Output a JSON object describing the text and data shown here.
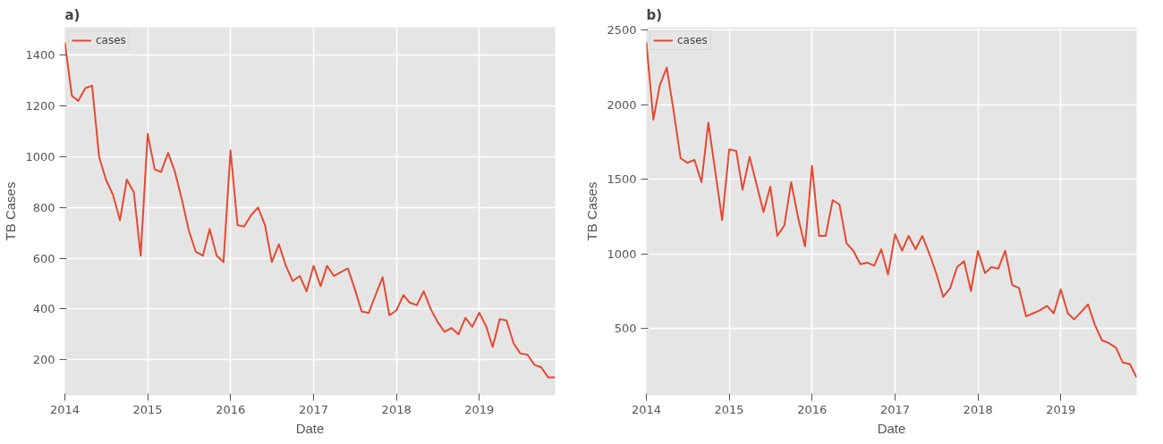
{
  "chart_data": [
    {
      "type": "line",
      "title": "a)",
      "xlabel": "Date",
      "ylabel": "TB Cases",
      "x": [
        "2014-01",
        "2014-02",
        "2014-03",
        "2014-04",
        "2014-05",
        "2014-06",
        "2014-07",
        "2014-08",
        "2014-09",
        "2014-10",
        "2014-11",
        "2014-12",
        "2015-01",
        "2015-02",
        "2015-03",
        "2015-04",
        "2015-05",
        "2015-06",
        "2015-07",
        "2015-08",
        "2015-09",
        "2015-10",
        "2015-11",
        "2015-12",
        "2016-01",
        "2016-02",
        "2016-03",
        "2016-04",
        "2016-05",
        "2016-06",
        "2016-07",
        "2016-08",
        "2016-09",
        "2016-10",
        "2016-11",
        "2016-12",
        "2017-01",
        "2017-02",
        "2017-03",
        "2017-04",
        "2017-05",
        "2017-06",
        "2017-07",
        "2017-08",
        "2017-09",
        "2017-10",
        "2017-11",
        "2017-12",
        "2018-01",
        "2018-02",
        "2018-03",
        "2018-04",
        "2018-05",
        "2018-06",
        "2018-07",
        "2018-08",
        "2018-09",
        "2018-10",
        "2018-11",
        "2018-12",
        "2019-01",
        "2019-02",
        "2019-03",
        "2019-04",
        "2019-05",
        "2019-06",
        "2019-07",
        "2019-08",
        "2019-09",
        "2019-10",
        "2019-11",
        "2019-12"
      ],
      "series": [
        {
          "name": "cases",
          "color": "#e24a33",
          "values": [
            1450,
            1240,
            1220,
            1270,
            1280,
            1000,
            910,
            850,
            750,
            910,
            860,
            610,
            1090,
            950,
            940,
            1015,
            940,
            830,
            710,
            625,
            610,
            715,
            610,
            585,
            1025,
            730,
            725,
            770,
            800,
            730,
            585,
            655,
            570,
            510,
            530,
            470,
            570,
            490,
            570,
            530,
            545,
            560,
            480,
            390,
            385,
            455,
            525,
            375,
            395,
            455,
            425,
            415,
            470,
            400,
            350,
            310,
            325,
            300,
            365,
            330,
            385,
            330,
            250,
            360,
            355,
            265,
            225,
            220,
            180,
            170,
            130,
            130
          ]
        }
      ],
      "xlim": [
        "2014-01",
        "2019-12"
      ],
      "xticks": [
        {
          "value": "2014-01",
          "label": "2014"
        },
        {
          "value": "2015-01",
          "label": "2015"
        },
        {
          "value": "2016-01",
          "label": "2016"
        },
        {
          "value": "2017-01",
          "label": "2017"
        },
        {
          "value": "2018-01",
          "label": "2018"
        },
        {
          "value": "2019-01",
          "label": "2019"
        }
      ],
      "ylim": [
        60,
        1510
      ],
      "yticks": [
        200,
        400,
        600,
        800,
        1000,
        1200,
        1400
      ],
      "grid": true,
      "legend": "top left",
      "line_style": "solid"
    },
    {
      "type": "line",
      "title": "b)",
      "xlabel": "Date",
      "ylabel": "TB Cases",
      "x": [
        "2014-01",
        "2014-02",
        "2014-03",
        "2014-04",
        "2014-05",
        "2014-06",
        "2014-07",
        "2014-08",
        "2014-09",
        "2014-10",
        "2014-11",
        "2014-12",
        "2015-01",
        "2015-02",
        "2015-03",
        "2015-04",
        "2015-05",
        "2015-06",
        "2015-07",
        "2015-08",
        "2015-09",
        "2015-10",
        "2015-11",
        "2015-12",
        "2016-01",
        "2016-02",
        "2016-03",
        "2016-04",
        "2016-05",
        "2016-06",
        "2016-07",
        "2016-08",
        "2016-09",
        "2016-10",
        "2016-11",
        "2016-12",
        "2017-01",
        "2017-02",
        "2017-03",
        "2017-04",
        "2017-05",
        "2017-06",
        "2017-07",
        "2017-08",
        "2017-09",
        "2017-10",
        "2017-11",
        "2017-12",
        "2018-01",
        "2018-02",
        "2018-03",
        "2018-04",
        "2018-05",
        "2018-06",
        "2018-07",
        "2018-08",
        "2018-09",
        "2018-10",
        "2018-11",
        "2018-12",
        "2019-01",
        "2019-02",
        "2019-03",
        "2019-04",
        "2019-05",
        "2019-06",
        "2019-07",
        "2019-08",
        "2019-09",
        "2019-10",
        "2019-11",
        "2019-12"
      ],
      "series": [
        {
          "name": "cases",
          "color": "#e24a33",
          "values": [
            2420,
            1900,
            2130,
            2250,
            1960,
            1640,
            1610,
            1630,
            1480,
            1880,
            1550,
            1225,
            1700,
            1690,
            1430,
            1650,
            1470,
            1280,
            1450,
            1120,
            1190,
            1480,
            1240,
            1050,
            1590,
            1120,
            1120,
            1360,
            1330,
            1070,
            1020,
            930,
            940,
            920,
            1030,
            860,
            1130,
            1020,
            1120,
            1030,
            1120,
            1000,
            870,
            710,
            770,
            910,
            950,
            750,
            1020,
            870,
            910,
            900,
            1020,
            790,
            770,
            580,
            600,
            620,
            650,
            600,
            760,
            600,
            560,
            610,
            660,
            520,
            420,
            400,
            370,
            270,
            260,
            170
          ]
        }
      ],
      "xlim": [
        "2014-01",
        "2019-12"
      ],
      "xticks": [
        {
          "value": "2014-01",
          "label": "2014"
        },
        {
          "value": "2015-01",
          "label": "2015"
        },
        {
          "value": "2016-01",
          "label": "2016"
        },
        {
          "value": "2017-01",
          "label": "2017"
        },
        {
          "value": "2018-01",
          "label": "2018"
        },
        {
          "value": "2019-01",
          "label": "2019"
        }
      ],
      "ylim": [
        50,
        2520
      ],
      "yticks": [
        500,
        1000,
        1500,
        2000,
        2500
      ],
      "grid": true,
      "legend": "top left",
      "line_style": "solid"
    }
  ]
}
